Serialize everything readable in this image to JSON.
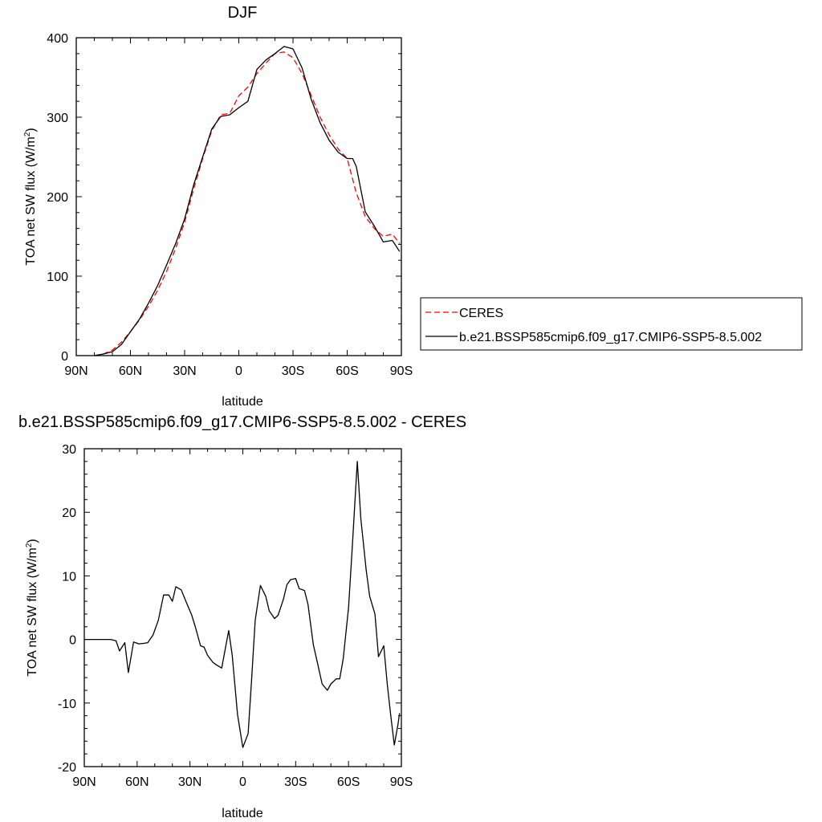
{
  "chart_data": [
    {
      "type": "line",
      "title": "DJF",
      "xlabel": "latitude",
      "ylabel": "TOA net SW flux (W/m²)",
      "ylabel_base": "TOA net SW flux (W/m",
      "ylabel_sup": "2",
      "ylabel_end": ")",
      "xlim": [
        90,
        -90
      ],
      "ylim": [
        0,
        400
      ],
      "x_ticks": [
        90,
        60,
        30,
        0,
        -30,
        -60,
        -90
      ],
      "x_tick_labels": [
        "90N",
        "60N",
        "30N",
        "0",
        "30S",
        "60S",
        "90S"
      ],
      "y_ticks": [
        0,
        100,
        200,
        300,
        400
      ],
      "y_tick_labels": [
        "0",
        "100",
        "200",
        "300",
        "400"
      ],
      "legend_position": "right",
      "series": [
        {
          "name": "CERES",
          "color": "#ff0000",
          "dash": "dashed",
          "x": [
            80,
            75,
            70,
            65,
            60,
            55,
            50,
            45,
            40,
            35,
            30,
            25,
            20,
            15,
            10,
            5,
            0,
            -5,
            -10,
            -15,
            -20,
            -25,
            -30,
            -35,
            -40,
            -45,
            -50,
            -55,
            -60,
            -65,
            -70,
            -75,
            -80,
            -85,
            -89
          ],
          "y": [
            0,
            2,
            7,
            17,
            30,
            45,
            62,
            82,
            106,
            135,
            168,
            210,
            248,
            283,
            303,
            305,
            327,
            338,
            355,
            368,
            380,
            382,
            375,
            355,
            328,
            300,
            278,
            260,
            248,
            205,
            175,
            160,
            150,
            153,
            141
          ]
        },
        {
          "name": "b.e21.BSSP585cmip6.f09_g17.CMIP6-SSP5-8.5.002",
          "color": "#000000",
          "dash": "solid",
          "x": [
            80,
            75,
            70,
            65,
            60,
            55,
            50,
            45,
            40,
            35,
            30,
            25,
            20,
            15,
            10,
            5,
            0,
            -5,
            -10,
            -15,
            -20,
            -25,
            -30,
            -35,
            -40,
            -45,
            -50,
            -55,
            -60,
            -63,
            -65,
            -70,
            -75,
            -80,
            -85,
            -89
          ],
          "y": [
            0,
            2,
            5,
            14,
            30,
            46,
            66,
            88,
            114,
            141,
            172,
            215,
            250,
            285,
            301,
            303,
            312,
            320,
            360,
            372,
            380,
            389,
            386,
            362,
            323,
            293,
            271,
            256,
            248,
            248,
            238,
            181,
            163,
            143,
            145,
            131
          ]
        }
      ]
    },
    {
      "type": "line",
      "title": "b.e21.BSSP585cmip6.f09_g17.CMIP6-SSP5-8.5.002 - CERES",
      "xlabel": "latitude",
      "ylabel": "TOA net SW flux (W/m²)",
      "ylabel_base": "TOA net SW flux (W/m",
      "ylabel_sup": "2",
      "ylabel_end": ")",
      "xlim": [
        90,
        -90
      ],
      "ylim": [
        -20,
        30
      ],
      "x_ticks": [
        90,
        60,
        30,
        0,
        -30,
        -60,
        -90
      ],
      "x_tick_labels": [
        "90N",
        "60N",
        "30N",
        "0",
        "30S",
        "60S",
        "90S"
      ],
      "y_ticks": [
        -20,
        -10,
        0,
        10,
        20,
        30
      ],
      "y_tick_labels": [
        "-20",
        "-10",
        "0",
        "10",
        "20",
        "30"
      ],
      "series": [
        {
          "color": "#000000",
          "dash": "solid",
          "x": [
            90,
            85,
            80,
            75,
            72,
            70,
            67,
            65,
            62,
            59,
            56,
            54,
            51,
            48,
            45,
            42,
            40,
            38,
            35,
            32,
            29,
            27,
            24,
            22,
            20,
            17,
            15,
            12,
            10,
            8,
            6,
            3,
            0,
            -3,
            -5,
            -7,
            -10,
            -13,
            -15,
            -18,
            -20,
            -23,
            -25,
            -27,
            -30,
            -32,
            -35,
            -37,
            -40,
            -43,
            -45,
            -48,
            -50,
            -53,
            -55,
            -57,
            -60,
            -62,
            -65,
            -67,
            -70,
            -72,
            -75,
            -77,
            -80,
            -82,
            -84,
            -86,
            -88,
            -89
          ],
          "y": [
            0,
            0,
            0,
            0,
            -0.2,
            -1.8,
            -0.5,
            -5.2,
            -0.4,
            -0.7,
            -0.6,
            -0.5,
            0.7,
            3.0,
            7.0,
            7.0,
            6.0,
            8.3,
            7.8,
            5.8,
            3.8,
            2.0,
            -1.0,
            -1.2,
            -2.5,
            -3.6,
            -4.0,
            -4.5,
            -1.5,
            1.4,
            -2.5,
            -11.8,
            -17.0,
            -14.8,
            -6.2,
            3.0,
            8.5,
            6.8,
            4.5,
            3.3,
            3.8,
            6.3,
            8.6,
            9.4,
            9.6,
            8.0,
            7.7,
            5.5,
            -0.8,
            -4.5,
            -7.0,
            -8.0,
            -7.0,
            -6.2,
            -6.2,
            -3.0,
            5.0,
            14.0,
            28.0,
            19.0,
            11.0,
            6.8,
            4.0,
            -2.7,
            -1.0,
            -7.0,
            -12.0,
            -16.6,
            -13.5,
            -11.6
          ]
        }
      ]
    }
  ]
}
